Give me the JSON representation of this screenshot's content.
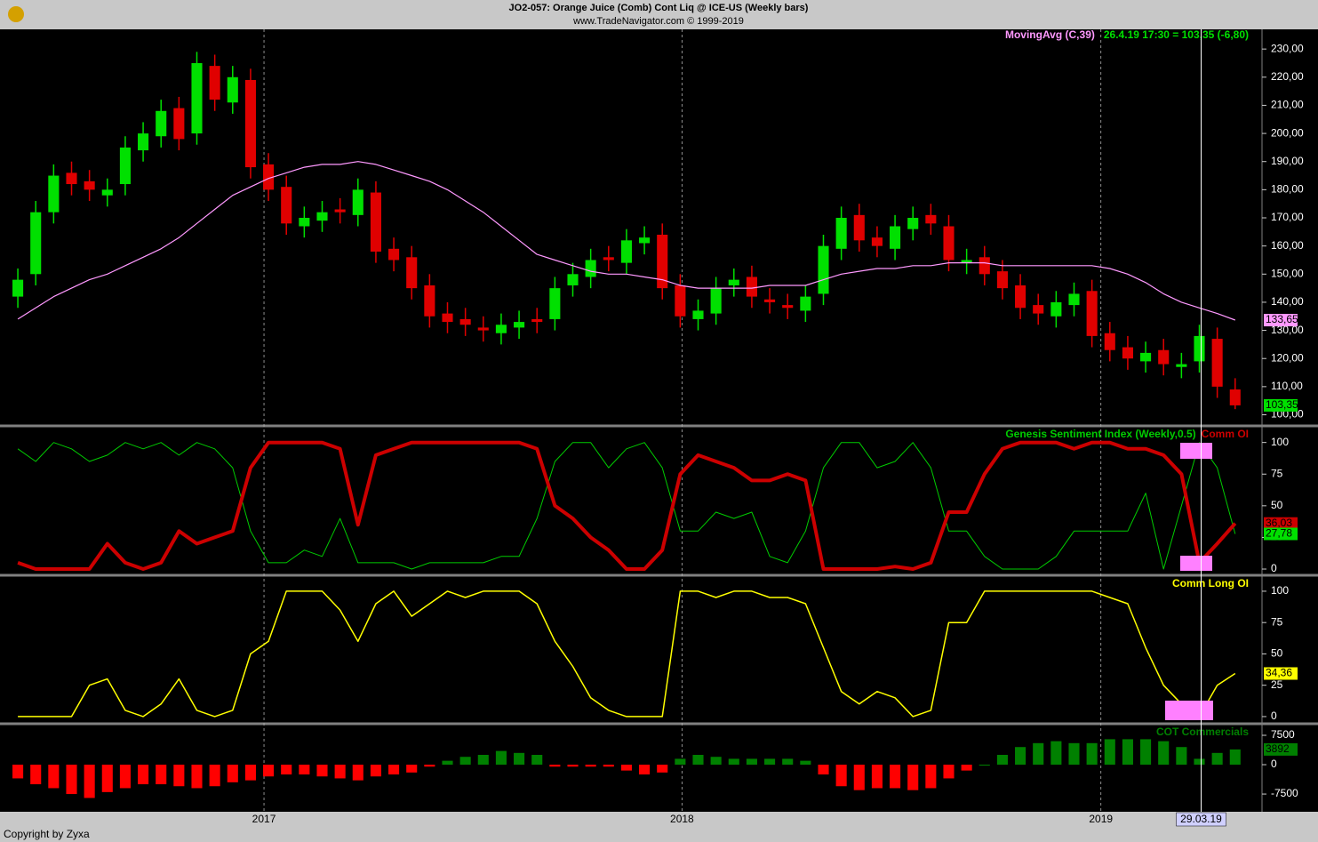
{
  "chart_data": [
    {
      "type": "candlestick",
      "title": "JO2-057:  Orange Juice (Comb) Cont Liq @ ICE-US  (Weekly bars)",
      "subtitle": "www.TradeNavigator.com © 1999-2019",
      "footer": "Copyright by Zyxa",
      "annotation": "26.4.19 17:30 = 103,35 (-6,80)",
      "annotation_color": "#00e000",
      "x": [
        0,
        1,
        2,
        3,
        4,
        5,
        6,
        7,
        8,
        9,
        10,
        11,
        12,
        13,
        14,
        15,
        16,
        17,
        18,
        19,
        20,
        21,
        22,
        23,
        24,
        25,
        26,
        27,
        28,
        29,
        30,
        31,
        32,
        33,
        34,
        35,
        36,
        37,
        38,
        39,
        40,
        41,
        42,
        43,
        44,
        45,
        46,
        47,
        48,
        49,
        50,
        51,
        52,
        53,
        54,
        55,
        56,
        57,
        58,
        59,
        60,
        61,
        62,
        63,
        64,
        65,
        66,
        67,
        68
      ],
      "open": [
        142,
        150,
        172,
        186,
        183,
        178,
        182,
        194,
        199,
        209,
        200,
        224,
        211,
        219,
        189,
        181,
        167,
        169,
        173,
        171,
        179,
        159,
        156,
        146,
        136,
        134,
        131,
        129,
        131,
        134,
        134,
        146,
        149,
        156,
        154,
        161,
        164,
        146,
        134,
        136,
        146,
        149,
        141,
        139,
        137,
        143,
        159,
        171,
        163,
        159,
        166,
        171,
        167,
        154,
        156,
        151,
        146,
        139,
        135,
        139,
        144,
        129,
        124,
        119,
        123,
        117,
        119,
        127,
        109
      ],
      "high": [
        152,
        176,
        189,
        190,
        187,
        184,
        199,
        204,
        212,
        213,
        229,
        228,
        224,
        223,
        193,
        185,
        174,
        176,
        177,
        184,
        183,
        163,
        160,
        150,
        140,
        138,
        135,
        136,
        137,
        138,
        149,
        154,
        159,
        160,
        166,
        167,
        168,
        150,
        141,
        149,
        152,
        153,
        145,
        143,
        146,
        164,
        174,
        175,
        167,
        171,
        174,
        175,
        171,
        159,
        160,
        155,
        150,
        143,
        144,
        147,
        148,
        133,
        128,
        126,
        127,
        122,
        132,
        131,
        113
      ],
      "low": [
        138,
        146,
        168,
        178,
        176,
        174,
        178,
        190,
        195,
        194,
        196,
        208,
        207,
        184,
        176,
        164,
        163,
        165,
        168,
        167,
        154,
        151,
        141,
        131,
        129,
        128,
        126,
        125,
        127,
        129,
        130,
        142,
        145,
        151,
        150,
        157,
        141,
        131,
        130,
        132,
        142,
        138,
        136,
        134,
        133,
        139,
        155,
        158,
        156,
        155,
        162,
        164,
        151,
        150,
        146,
        141,
        134,
        132,
        131,
        135,
        124,
        119,
        116,
        115,
        114,
        113,
        115,
        106,
        102
      ],
      "close": [
        148,
        172,
        185,
        182,
        180,
        180,
        195,
        200,
        208,
        198,
        225,
        212,
        220,
        188,
        180,
        168,
        170,
        172,
        172,
        180,
        158,
        155,
        145,
        135,
        133,
        132,
        130,
        132,
        133,
        133,
        145,
        150,
        155,
        155,
        162,
        163,
        145,
        135,
        137,
        145,
        148,
        142,
        140,
        138,
        142,
        160,
        170,
        162,
        160,
        167,
        170,
        168,
        155,
        155,
        150,
        145,
        138,
        136,
        140,
        143,
        128,
        123,
        120,
        122,
        118,
        118,
        128,
        110,
        103.35
      ],
      "up_color": "#00e000",
      "down_color": "#e00000",
      "series": [
        {
          "name": "MovingAvg (C,39)",
          "color": "#ff99ff",
          "values": [
            134,
            138,
            142,
            145,
            148,
            150,
            153,
            156,
            159,
            163,
            168,
            173,
            178,
            181,
            184,
            186,
            188,
            189,
            189,
            190,
            189,
            187,
            185,
            183,
            180,
            176,
            172,
            167,
            162,
            157,
            155,
            153,
            151,
            150,
            150,
            149,
            148,
            146,
            145,
            145,
            145,
            145,
            146,
            146,
            146,
            148,
            150,
            151,
            152,
            152,
            153,
            153,
            154,
            154,
            154,
            153,
            153,
            153,
            153,
            153,
            153,
            152,
            150,
            147,
            143,
            140,
            138,
            136,
            133.65
          ]
        }
      ],
      "last_labels": [
        {
          "value": 133.65,
          "label": "133,65",
          "color": "#ff99ff"
        },
        {
          "value": 103.35,
          "label": "103,35",
          "color": "#00e000"
        }
      ],
      "xlim": [
        -0.5,
        69.5
      ],
      "xticks": [
        {
          "value": 13.75,
          "label": "2017"
        },
        {
          "value": 37.1,
          "label": "2018"
        },
        {
          "value": 60.5,
          "label": "2019"
        }
      ],
      "cursor": {
        "value": 66.1,
        "label": "29.03.19"
      },
      "ylim": [
        97,
        237
      ],
      "yticks": [
        {
          "value": 100,
          "label": "100,00"
        },
        {
          "value": 110,
          "label": "110,00"
        },
        {
          "value": 120,
          "label": "120,00"
        },
        {
          "value": 130,
          "label": "130,00"
        },
        {
          "value": 140,
          "label": "140,00"
        },
        {
          "value": 150,
          "label": "150,00"
        },
        {
          "value": 160,
          "label": "160,00"
        },
        {
          "value": 170,
          "label": "170,00"
        },
        {
          "value": 180,
          "label": "180,00"
        },
        {
          "value": 190,
          "label": "190,00"
        },
        {
          "value": 200,
          "label": "200,00"
        },
        {
          "value": 210,
          "label": "210,00"
        },
        {
          "value": 220,
          "label": "220,00"
        },
        {
          "value": 230,
          "label": "230,00"
        }
      ]
    },
    {
      "type": "line",
      "series": [
        {
          "name": "Genesis Sentiment Index (Weekly,0.5)",
          "color": "#00cc00",
          "width": 1,
          "values": [
            95,
            85,
            100,
            95,
            85,
            90,
            100,
            95,
            100,
            90,
            100,
            95,
            80,
            30,
            5,
            5,
            15,
            10,
            40,
            5,
            5,
            5,
            0,
            5,
            5,
            5,
            5,
            10,
            10,
            40,
            85,
            100,
            100,
            80,
            95,
            100,
            80,
            30,
            30,
            45,
            40,
            45,
            10,
            5,
            30,
            80,
            100,
            100,
            80,
            85,
            100,
            80,
            30,
            30,
            10,
            0,
            0,
            0,
            10,
            30,
            30,
            30,
            30,
            60,
            0,
            50,
            100,
            80,
            27.78
          ]
        },
        {
          "name": "Comm OI",
          "color": "#cc0000",
          "width": 4,
          "values": [
            5,
            0,
            0,
            0,
            0,
            20,
            5,
            0,
            5,
            30,
            20,
            25,
            30,
            80,
            100,
            100,
            100,
            100,
            95,
            35,
            90,
            95,
            100,
            100,
            100,
            100,
            100,
            100,
            100,
            95,
            50,
            40,
            25,
            15,
            0,
            0,
            15,
            75,
            90,
            85,
            80,
            70,
            70,
            75,
            70,
            0,
            0,
            0,
            0,
            2,
            0,
            5,
            45,
            45,
            75,
            95,
            100,
            100,
            100,
            95,
            100,
            100,
            95,
            95,
            90,
            75,
            5,
            20,
            36.03
          ]
        }
      ],
      "last_labels": [
        {
          "value": 36.03,
          "label": "36,03",
          "color": "#cc0000"
        },
        {
          "value": 27.78,
          "label": "27,78",
          "color": "#00e000"
        }
      ],
      "ylim": [
        -3.5,
        111
      ],
      "yticks": [
        0,
        25,
        50,
        75,
        100
      ]
    },
    {
      "type": "line",
      "series": [
        {
          "name": "Comm Long OI",
          "color": "#ffff00",
          "width": 1.5,
          "values": [
            0,
            0,
            0,
            0,
            25,
            30,
            5,
            0,
            10,
            30,
            5,
            0,
            5,
            50,
            60,
            100,
            100,
            100,
            85,
            60,
            90,
            100,
            80,
            90,
            100,
            95,
            100,
            100,
            100,
            90,
            60,
            40,
            15,
            5,
            0,
            0,
            0,
            100,
            100,
            95,
            100,
            100,
            95,
            95,
            90,
            55,
            20,
            10,
            20,
            15,
            0,
            5,
            75,
            75,
            100,
            100,
            100,
            100,
            100,
            100,
            100,
            95,
            90,
            55,
            25,
            10,
            0,
            25,
            34.36
          ]
        }
      ],
      "last_labels": [
        {
          "value": 34.36,
          "label": "34,36",
          "color": "#ffff00"
        }
      ],
      "ylim": [
        -4.3,
        110.6
      ],
      "yticks": [
        0,
        25,
        50,
        75,
        100
      ]
    },
    {
      "type": "bar",
      "series": [
        {
          "name": "COT Commercials",
          "color": "#008000",
          "negative_color": "#ff0000",
          "values": [
            -3500,
            -5000,
            -6000,
            -7500,
            -8500,
            -7000,
            -6000,
            -5000,
            -5000,
            -5500,
            -6000,
            -5500,
            -4500,
            -4000,
            -3000,
            -2500,
            -2500,
            -3000,
            -3500,
            -4000,
            -3000,
            -2500,
            -2000,
            -500,
            1000,
            2000,
            2500,
            3500,
            3000,
            2500,
            -500,
            -500,
            -500,
            -500,
            -1500,
            -2500,
            -2000,
            1500,
            2500,
            2000,
            1500,
            1500,
            1500,
            1500,
            1000,
            -2500,
            -5500,
            -6500,
            -6000,
            -6000,
            -6500,
            -6000,
            -3500,
            -1500,
            0,
            2500,
            4500,
            5500,
            6000,
            5500,
            5500,
            6500,
            6500,
            6500,
            6000,
            4500,
            1500,
            3000,
            3892
          ]
        }
      ],
      "last_labels": [
        {
          "value": 3892,
          "label": "3892",
          "color": "#008000"
        }
      ],
      "ylim": [
        -11800,
        9770
      ],
      "yticks": [
        -7500,
        0,
        7500
      ]
    }
  ]
}
